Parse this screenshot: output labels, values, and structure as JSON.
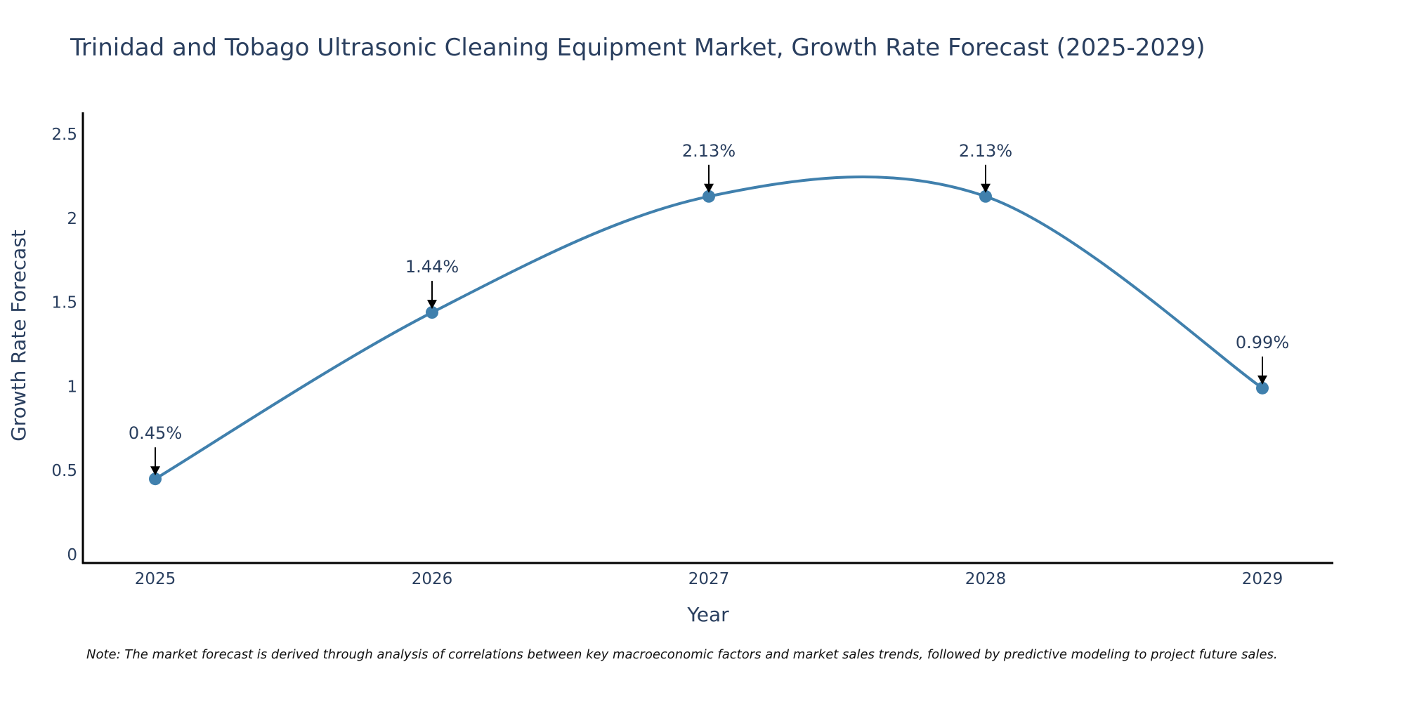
{
  "chart_data": {
    "type": "line",
    "title": "Trinidad and Tobago Ultrasonic Cleaning Equipment Market, Growth Rate Forecast (2025-2029)",
    "xlabel": "Year",
    "ylabel": "Growth Rate Forecast",
    "categories": [
      "2025",
      "2026",
      "2027",
      "2028",
      "2029"
    ],
    "series": [
      {
        "name": "Growth Rate Forecast",
        "values": [
          0.45,
          1.44,
          2.13,
          2.13,
          0.99
        ],
        "labels": [
          "0.45%",
          "1.44%",
          "2.13%",
          "2.13%",
          "0.99%"
        ]
      }
    ],
    "ylim": [
      -0.05,
      2.63
    ],
    "yticks": [
      0,
      0.5,
      1,
      1.5,
      2,
      2.5
    ],
    "ytick_labels": [
      "0",
      "0.5",
      "1",
      "1.5",
      "2",
      "2.5"
    ],
    "grid": false,
    "line_color": "#4080ad",
    "marker_color": "#4080ad",
    "axis_color": "#000000",
    "note": "Note: The market forecast is derived through analysis of correlations between key macroeconomic factors and market sales trends, followed by predictive modeling to project future sales."
  }
}
